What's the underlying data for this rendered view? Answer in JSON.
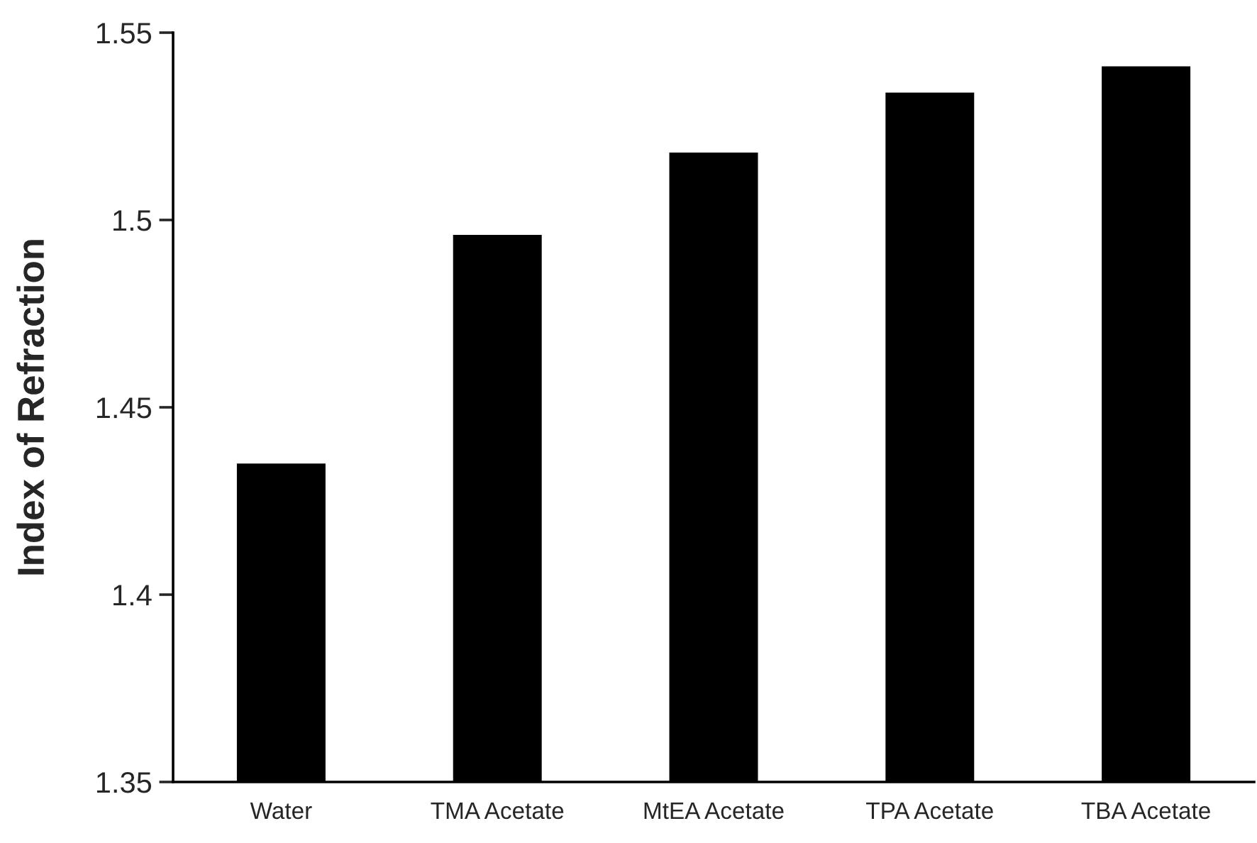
{
  "chart_data": {
    "type": "bar",
    "ylabel": "Index of Refraction",
    "categories": [
      "Water",
      "TMA Acetate",
      "MtEA Acetate",
      "TPA Acetate",
      "TBA Acetate"
    ],
    "values": [
      1.435,
      1.496,
      1.518,
      1.534,
      1.541
    ],
    "color": "#000000",
    "ylim": [
      1.35,
      1.55
    ],
    "yticks": [
      {
        "value": 1.35,
        "label": "1.35"
      },
      {
        "value": 1.4,
        "label": "1.4"
      },
      {
        "value": 1.45,
        "label": "1.45"
      },
      {
        "value": 1.5,
        "label": "1.5"
      },
      {
        "value": 1.55,
        "label": "1.55"
      }
    ],
    "grid": false,
    "legend": false
  }
}
